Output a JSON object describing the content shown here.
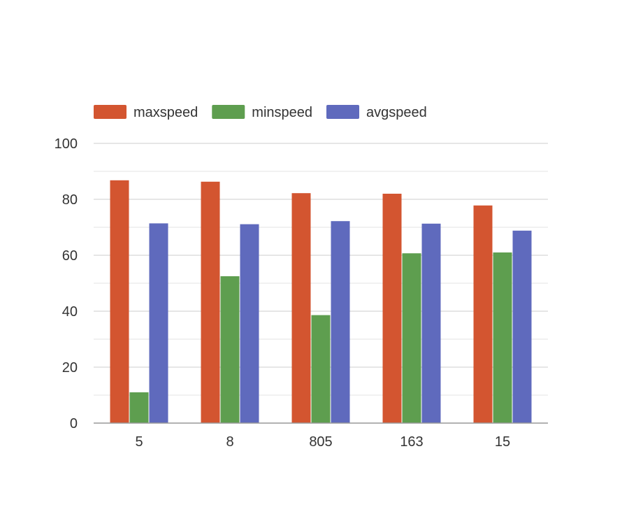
{
  "chart_data": {
    "type": "bar",
    "title": "",
    "xlabel": "",
    "ylabel": "",
    "categories": [
      "5",
      "8",
      "805",
      "163",
      "15"
    ],
    "series": [
      {
        "name": "maxspeed",
        "color": "#d35530",
        "values": [
          86.8,
          86.3,
          82.2,
          82.0,
          77.8
        ]
      },
      {
        "name": "minspeed",
        "color": "#5e9e4f",
        "values": [
          11.0,
          52.5,
          38.6,
          60.7,
          61.0
        ]
      },
      {
        "name": "avgspeed",
        "color": "#5f6abd",
        "values": [
          71.4,
          71.1,
          72.2,
          71.3,
          68.8
        ]
      }
    ],
    "ylim": [
      0,
      100
    ],
    "yticks": [
      "0",
      "20",
      "40",
      "60",
      "80",
      "100"
    ],
    "minor_gridlines": true,
    "legend_position": "top-left",
    "grid_color": "#cccccc",
    "axis_color": "#999999"
  }
}
